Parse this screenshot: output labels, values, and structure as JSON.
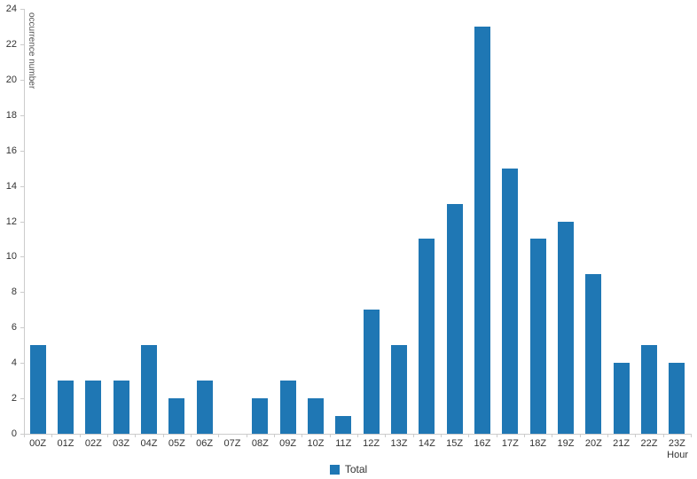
{
  "chart_data": {
    "type": "bar",
    "categories": [
      "00Z",
      "01Z",
      "02Z",
      "03Z",
      "04Z",
      "05Z",
      "06Z",
      "07Z",
      "08Z",
      "09Z",
      "10Z",
      "11Z",
      "12Z",
      "13Z",
      "14Z",
      "15Z",
      "16Z",
      "17Z",
      "18Z",
      "19Z",
      "20Z",
      "21Z",
      "22Z",
      "23Z"
    ],
    "values": [
      5,
      3,
      3,
      3,
      5,
      2,
      3,
      0,
      2,
      3,
      2,
      1,
      7,
      5,
      11,
      13,
      23,
      15,
      11,
      12,
      9,
      4,
      5,
      4
    ],
    "title": "",
    "xlabel": "Hour",
    "ylabel": "occurrence number",
    "ylim": [
      0,
      24
    ],
    "ytick_step": 2,
    "grid": false,
    "legend": [
      "Total"
    ],
    "legend_position": "bottom",
    "bar_color": "#1f77b4",
    "axis_color": "#cccccc"
  }
}
